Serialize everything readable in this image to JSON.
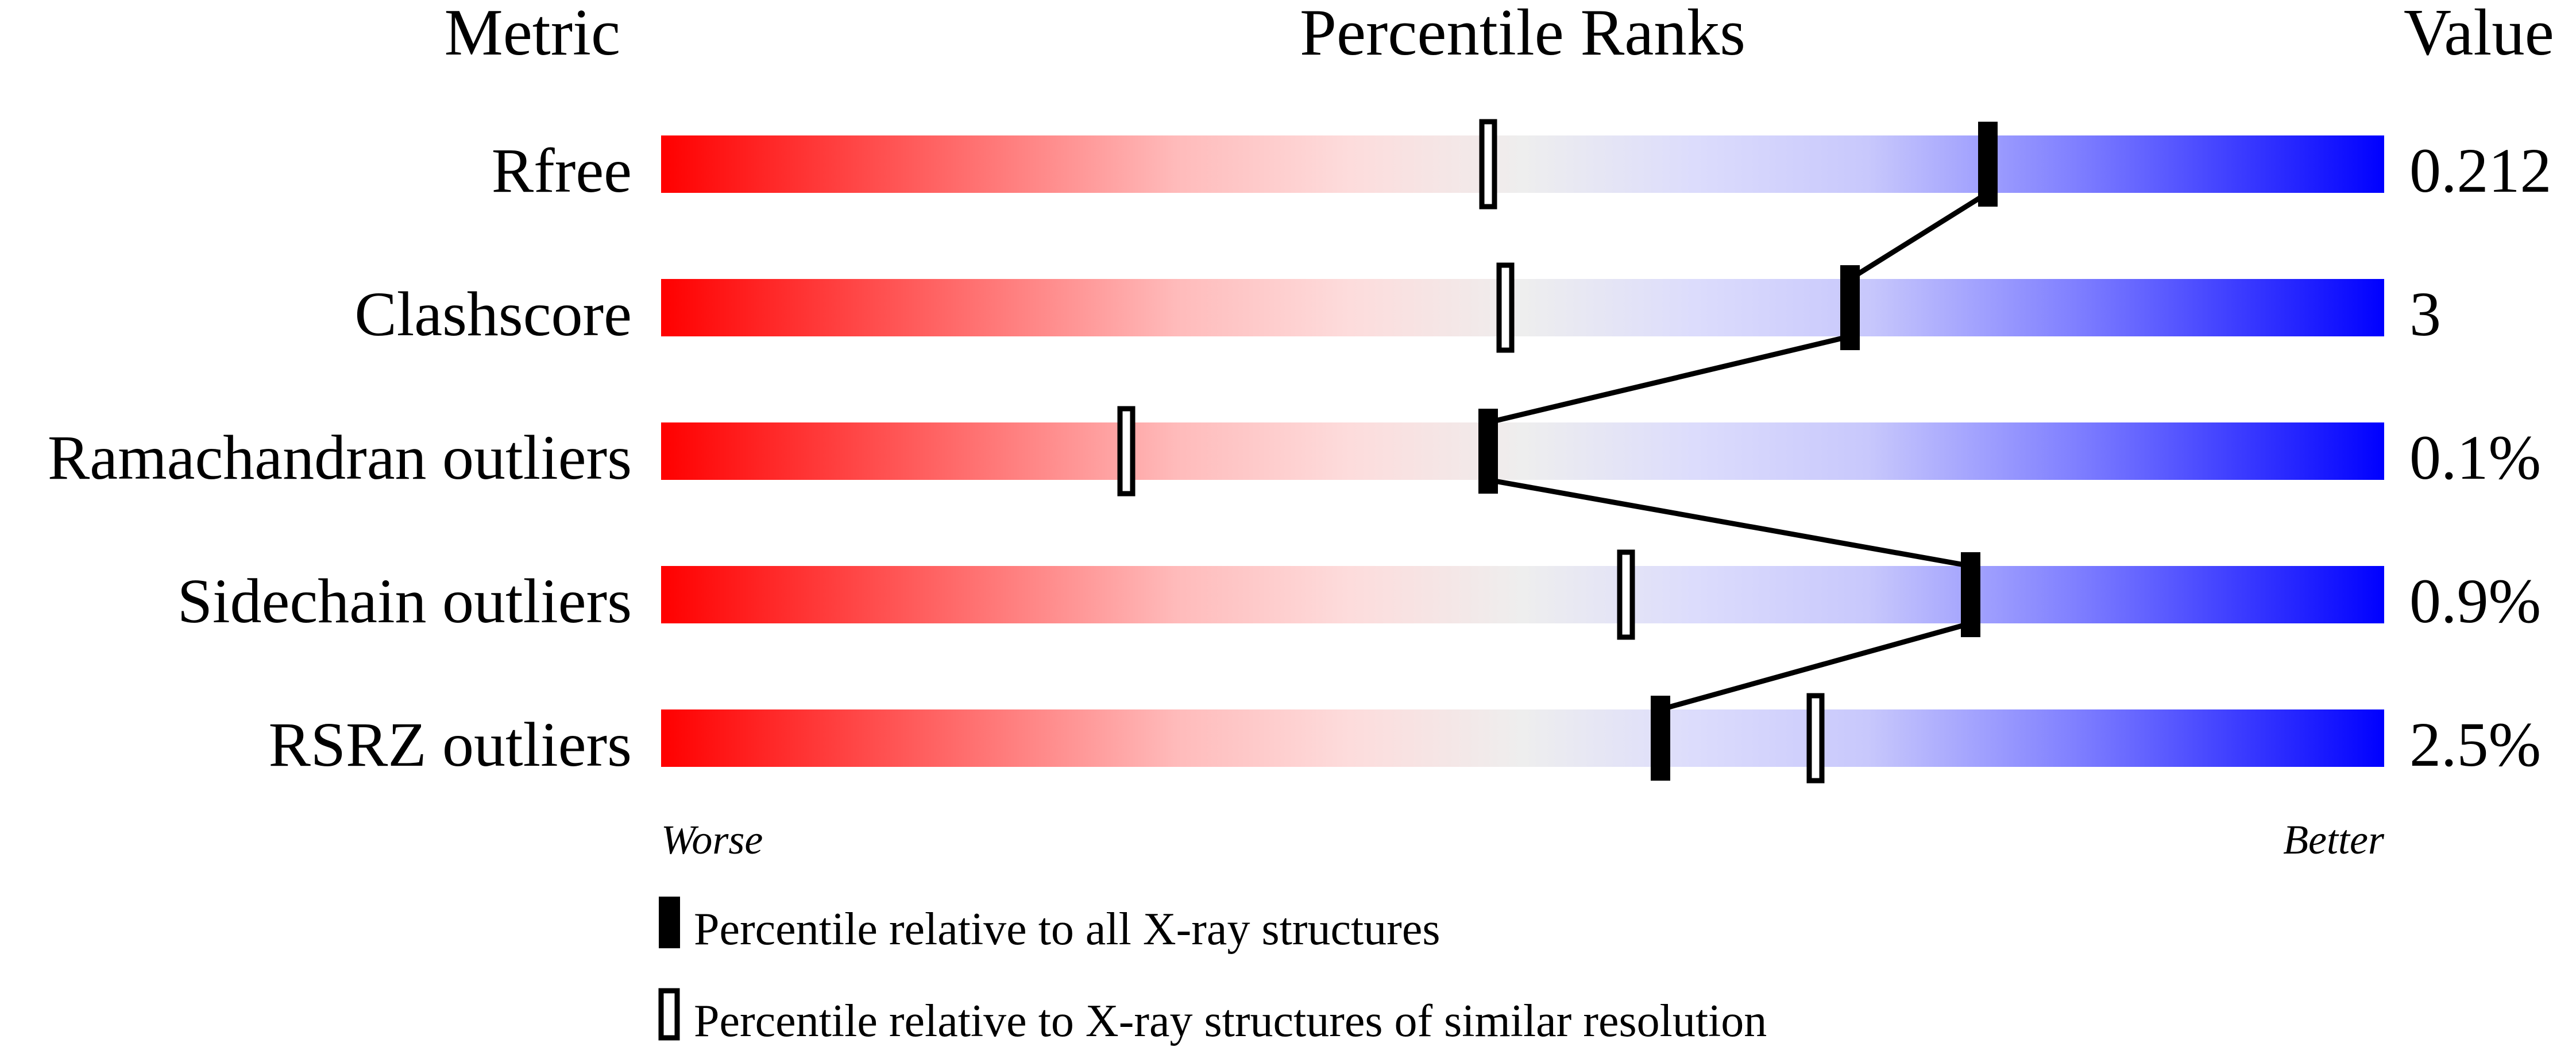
{
  "chart_data": {
    "type": "percentile-rank",
    "headers": {
      "metric": "Metric",
      "ranks": "Percentile Ranks",
      "value": "Value"
    },
    "axis": {
      "left_label": "Worse",
      "right_label": "Better",
      "range": [
        0,
        100
      ]
    },
    "gradient_colors": {
      "worse": "#ff0000",
      "middle": "#eeeeee",
      "better": "#0000ff"
    },
    "metrics": [
      {
        "name": "Rfree",
        "value": "0.212",
        "percentile_all": 77,
        "percentile_similar": 48
      },
      {
        "name": "Clashscore",
        "value": "3",
        "percentile_all": 69,
        "percentile_similar": 49
      },
      {
        "name": "Ramachandran outliers",
        "value": "0.1%",
        "percentile_all": 48,
        "percentile_similar": 27
      },
      {
        "name": "Sidechain outliers",
        "value": "0.9%",
        "percentile_all": 76,
        "percentile_similar": 56
      },
      {
        "name": "RSRZ outliers",
        "value": "2.5%",
        "percentile_all": 58,
        "percentile_similar": 67
      }
    ],
    "legend": {
      "all": "Percentile relative to all X-ray structures",
      "similar": "Percentile relative to X-ray structures of similar resolution"
    }
  }
}
